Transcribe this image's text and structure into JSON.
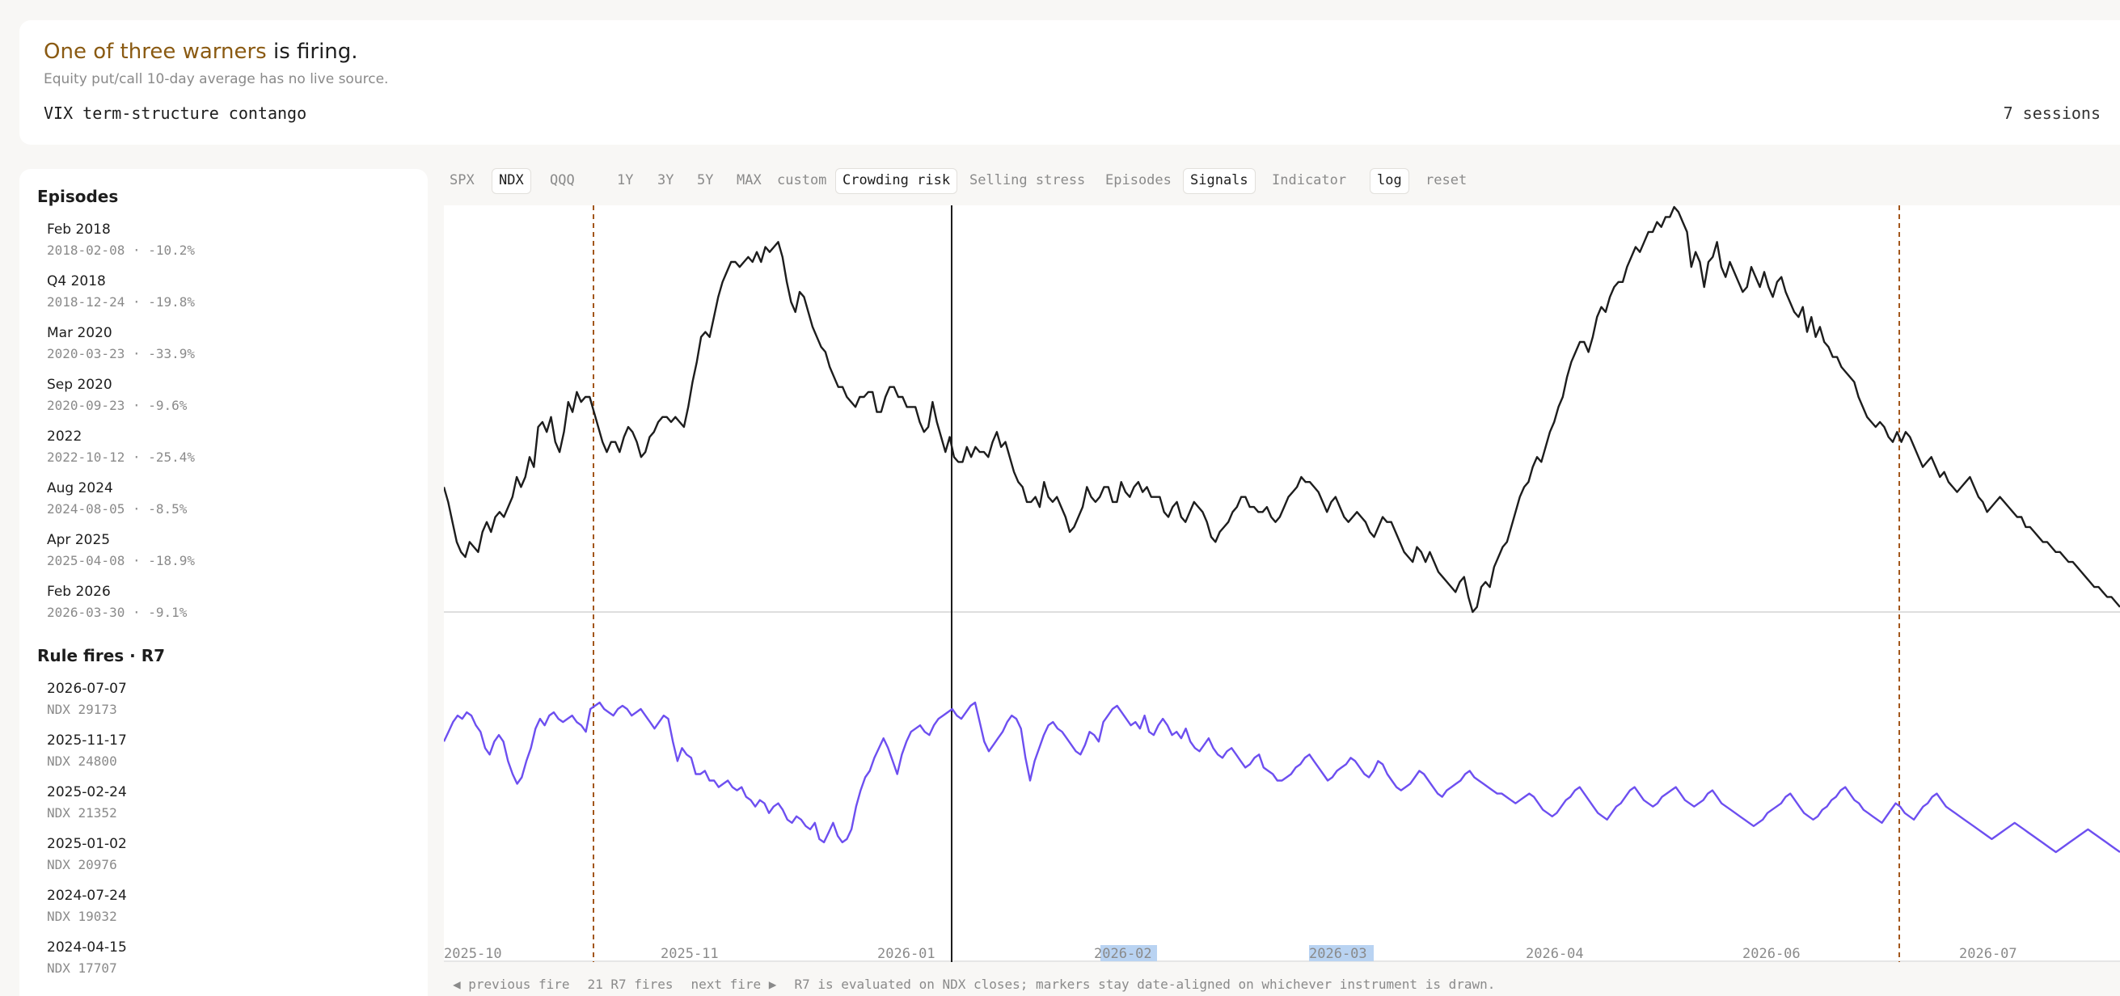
{
  "header": {
    "headline_accent": "One of three warners",
    "headline_rest": " is firing.",
    "subhead": "Equity put/call 10-day average has no live source.",
    "warner_name": "VIX term-structure contango",
    "warner_sessions": "7 sessions"
  },
  "sidebar": {
    "episodes_title": "Episodes",
    "episodes": [
      {
        "name": "Feb 2018",
        "detail": "2018-02-08 · -10.2%"
      },
      {
        "name": "Q4 2018",
        "detail": "2018-12-24 · -19.8%"
      },
      {
        "name": "Mar 2020",
        "detail": "2020-03-23 · -33.9%"
      },
      {
        "name": "Sep 2020",
        "detail": "2020-09-23 · -9.6%"
      },
      {
        "name": "2022",
        "detail": "2022-10-12 · -25.4%"
      },
      {
        "name": "Aug 2024",
        "detail": "2024-08-05 · -8.5%"
      },
      {
        "name": "Apr 2025",
        "detail": "2025-04-08 · -18.9%"
      },
      {
        "name": "Feb 2026",
        "detail": "2026-03-30 · -9.1%"
      }
    ],
    "fires_title": "Rule fires · R7",
    "fires": [
      {
        "date": "2026-07-07",
        "detail": "NDX 29173"
      },
      {
        "date": "2025-11-17",
        "detail": "NDX 24800"
      },
      {
        "date": "2025-02-24",
        "detail": "NDX 21352"
      },
      {
        "date": "2025-01-02",
        "detail": "NDX 20976"
      },
      {
        "date": "2024-07-24",
        "detail": "NDX 19032"
      },
      {
        "date": "2024-04-15",
        "detail": "NDX 17707"
      }
    ]
  },
  "toolbar": {
    "instruments": [
      "SPX",
      "NDX",
      "QQQ"
    ],
    "active_instrument": "NDX",
    "ranges": [
      "1Y",
      "3Y",
      "5Y",
      "MAX",
      "custom"
    ],
    "overlays": [
      "Crowding risk",
      "Selling stress",
      "Episodes",
      "Signals",
      "Indicator"
    ],
    "active_overlays": [
      "Crowding risk",
      "Signals"
    ],
    "log_label": "log",
    "reset_label": "reset"
  },
  "chart_data": {
    "type": "line",
    "x_tick_labels": [
      "2025-10",
      "2025-11",
      "2026-01",
      "2026-02",
      "2026-03",
      "2026-04",
      "2026-06",
      "2026-07"
    ],
    "highlighted_ticks": [
      "2026-02",
      "2026-03"
    ],
    "series": [
      {
        "values": [
          44,
          41,
          37,
          33,
          31,
          30,
          33,
          32,
          31,
          35,
          37,
          35,
          38,
          39,
          38,
          40,
          42,
          46,
          44,
          46,
          50,
          48,
          56,
          57,
          55,
          58,
          53,
          51,
          55,
          61,
          59,
          63,
          61,
          62,
          62,
          59,
          56,
          53,
          51,
          53,
          53,
          51,
          54,
          56,
          55,
          53,
          50,
          51,
          54,
          55,
          57,
          58,
          58,
          57,
          58,
          57,
          56,
          60,
          65,
          69,
          74,
          75,
          74,
          78,
          82,
          85,
          87,
          89,
          89,
          88,
          89,
          90,
          89,
          91,
          89,
          92,
          91,
          92,
          93,
          90,
          85,
          81,
          79,
          83,
          82,
          79,
          76,
          74,
          72,
          71,
          68,
          66,
          64,
          64,
          62,
          61,
          60,
          62,
          62,
          63,
          63,
          59,
          59,
          62,
          64,
          64,
          62,
          62,
          60,
          60,
          60,
          57,
          55,
          56,
          61,
          57,
          54,
          51,
          54,
          50,
          49,
          49,
          52,
          50,
          52,
          51,
          51,
          50,
          53,
          55,
          52,
          53,
          50,
          47,
          45,
          44,
          41,
          41,
          42,
          40,
          45,
          42,
          41,
          42,
          40,
          38,
          35,
          36,
          38,
          40,
          44,
          42,
          41,
          42,
          44,
          44,
          41,
          41,
          45,
          43,
          42,
          44,
          45,
          43,
          44,
          42,
          42,
          42,
          39,
          38,
          40,
          41,
          38,
          37,
          39,
          41,
          40,
          39,
          37,
          34,
          33,
          35,
          36,
          37,
          39,
          40,
          42,
          42,
          40,
          40,
          39,
          39,
          40,
          38,
          37,
          38,
          40,
          42,
          43,
          44,
          46,
          45,
          45,
          44,
          43,
          41,
          39,
          41,
          42,
          40,
          38,
          37,
          38,
          39,
          38,
          37,
          35,
          34,
          36,
          38,
          37,
          37,
          35,
          33,
          31,
          30,
          29,
          32,
          31,
          29,
          31,
          29,
          27,
          26,
          25,
          24,
          23,
          25,
          26,
          22,
          19,
          20,
          24,
          25,
          24,
          28,
          30,
          32,
          33,
          36,
          39,
          42,
          44,
          45,
          48,
          50,
          49,
          52,
          55,
          57,
          60,
          62,
          66,
          69,
          71,
          73,
          73,
          71,
          74,
          78,
          80,
          79,
          82,
          84,
          85,
          85,
          88,
          90,
          92,
          91,
          93,
          95,
          95,
          97,
          96,
          98,
          98,
          100,
          99,
          97,
          95,
          88,
          91,
          89,
          84,
          89,
          90,
          93,
          88,
          86,
          89,
          87,
          85,
          83,
          84,
          88,
          86,
          84,
          87,
          84,
          82,
          85,
          86,
          83,
          81,
          79,
          78,
          80,
          75,
          78,
          74,
          76,
          73,
          72,
          70,
          70,
          68,
          67,
          66,
          65,
          62,
          60,
          58,
          57,
          56,
          57,
          56,
          54,
          53,
          55,
          53,
          55,
          54,
          52,
          50,
          48,
          49,
          50,
          48,
          46,
          47,
          45,
          44,
          43,
          44,
          45,
          46,
          44,
          42,
          41,
          39,
          40,
          41,
          42,
          41,
          40,
          39,
          38,
          38,
          36,
          36,
          35,
          34,
          33,
          33,
          32,
          31,
          31,
          30,
          29,
          29,
          28,
          27,
          26,
          25,
          24,
          24,
          23,
          22,
          22,
          21,
          20
        ]
      },
      {
        "values": [
          50,
          53,
          56,
          58,
          57,
          59,
          58,
          55,
          53,
          48,
          46,
          50,
          52,
          50,
          44,
          40,
          37,
          39,
          44,
          48,
          54,
          57,
          55,
          58,
          59,
          57,
          56,
          57,
          58,
          56,
          55,
          53,
          60,
          61,
          62,
          60,
          59,
          58,
          60,
          61,
          60,
          58,
          59,
          60,
          58,
          56,
          54,
          56,
          58,
          57,
          50,
          44,
          48,
          46,
          45,
          40,
          40,
          41,
          38,
          38,
          36,
          37,
          38,
          36,
          35,
          36,
          33,
          32,
          30,
          32,
          31,
          28,
          30,
          31,
          29,
          26,
          25,
          27,
          26,
          24,
          23,
          25,
          20,
          19,
          22,
          25,
          21,
          19,
          20,
          23,
          30,
          35,
          39,
          41,
          45,
          48,
          51,
          48,
          44,
          40,
          46,
          50,
          53,
          54,
          55,
          53,
          52,
          55,
          57,
          58,
          59,
          60,
          58,
          57,
          59,
          61,
          62,
          56,
          50,
          47,
          49,
          51,
          53,
          56,
          58,
          57,
          54,
          45,
          38,
          44,
          48,
          52,
          55,
          56,
          54,
          53,
          51,
          49,
          47,
          46,
          49,
          53,
          52,
          50,
          56,
          58,
          60,
          61,
          59,
          57,
          55,
          56,
          54,
          58,
          53,
          52,
          55,
          57,
          55,
          52,
          53,
          51,
          54,
          50,
          48,
          47,
          49,
          51,
          48,
          46,
          45,
          47,
          48,
          46,
          44,
          42,
          43,
          45,
          46,
          42,
          41,
          40,
          38,
          38,
          39,
          40,
          42,
          43,
          45,
          46,
          44,
          42,
          40,
          38,
          39,
          41,
          42,
          43,
          45,
          44,
          42,
          40,
          39,
          41,
          44,
          43,
          40,
          38,
          36,
          35,
          36,
          37,
          39,
          41,
          40,
          38,
          36,
          34,
          33,
          35,
          36,
          37,
          38,
          40,
          41,
          39,
          38,
          37,
          36,
          35,
          34,
          34,
          33,
          32,
          31,
          32,
          33,
          34,
          33,
          31,
          29,
          28,
          27,
          28,
          30,
          32,
          33,
          35,
          36,
          34,
          32,
          30,
          28,
          27,
          26,
          28,
          30,
          31,
          33,
          35,
          36,
          34,
          32,
          31,
          30,
          31,
          33,
          34,
          35,
          36,
          34,
          32,
          31,
          30,
          31,
          32,
          34,
          35,
          33,
          31,
          30,
          29,
          28,
          27,
          26,
          25,
          24,
          25,
          26,
          28,
          29,
          30,
          31,
          33,
          34,
          32,
          30,
          28,
          27,
          26,
          27,
          29,
          30,
          32,
          33,
          35,
          36,
          34,
          32,
          31,
          29,
          28,
          27,
          26,
          25,
          27,
          29,
          31,
          30,
          28,
          27,
          26,
          28,
          30,
          31,
          33,
          34,
          32,
          30,
          29,
          28,
          27,
          26,
          25,
          24,
          23,
          22,
          21,
          20,
          21,
          22,
          23,
          24,
          25,
          24,
          23,
          22,
          21,
          20,
          19,
          18,
          17,
          16,
          17,
          18,
          19,
          20,
          21,
          22,
          23,
          22,
          21,
          20,
          19,
          18,
          17,
          16
        ]
      }
    ]
  },
  "footer": {
    "prev": "◀ previous fire",
    "count": "21 R7 fires",
    "next": "next fire ▶",
    "note": "R7 is evaluated on NDX closes; markers stay date-aligned on whichever instrument is drawn."
  },
  "colors": {
    "price_line": "#1d1d1d",
    "indicator_line": "#6d4ff0",
    "fire_marker": "#a2561b",
    "accent_text": "#8a5a12",
    "tick_highlight": "#b9d3f2"
  }
}
